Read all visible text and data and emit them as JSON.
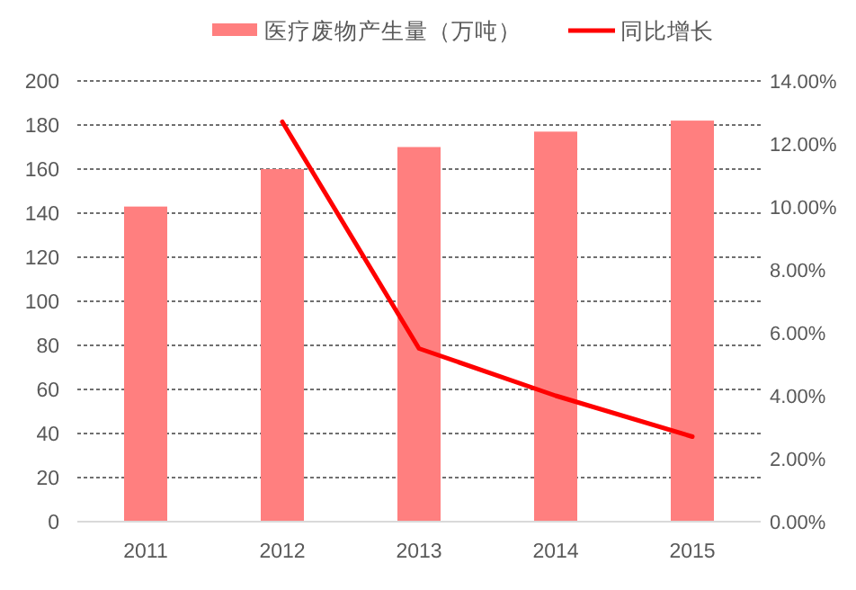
{
  "chart_data": {
    "type": "bar",
    "categories": [
      "2011",
      "2012",
      "2013",
      "2014",
      "2015"
    ],
    "series": [
      {
        "name": "医疗废物产生量（万吨）",
        "color": "#ff7f7f",
        "values": [
          143,
          160,
          170,
          177,
          182
        ]
      },
      {
        "name": "同比增长",
        "type": "line",
        "axis": "y2",
        "color": "#ff0000",
        "marker": "none",
        "line_style": "solid",
        "values": [
          null,
          12.7,
          5.5,
          4.0,
          2.7
        ]
      }
    ],
    "ylim": [
      0,
      200
    ],
    "yticks": [
      0,
      20,
      40,
      60,
      80,
      100,
      120,
      140,
      160,
      180,
      200
    ],
    "y2lim": [
      0,
      14
    ],
    "y2ticks": [
      {
        "value": 0,
        "label": "0.00%"
      },
      {
        "value": 2,
        "label": "2.00%"
      },
      {
        "value": 4,
        "label": "4.00%"
      },
      {
        "value": 6,
        "label": "6.00%"
      },
      {
        "value": 8,
        "label": "8.00%"
      },
      {
        "value": 10,
        "label": "10.00%"
      },
      {
        "value": 12,
        "label": "12.00%"
      },
      {
        "value": 14,
        "label": "14.00%"
      }
    ],
    "grid": "y",
    "legend": "top"
  }
}
